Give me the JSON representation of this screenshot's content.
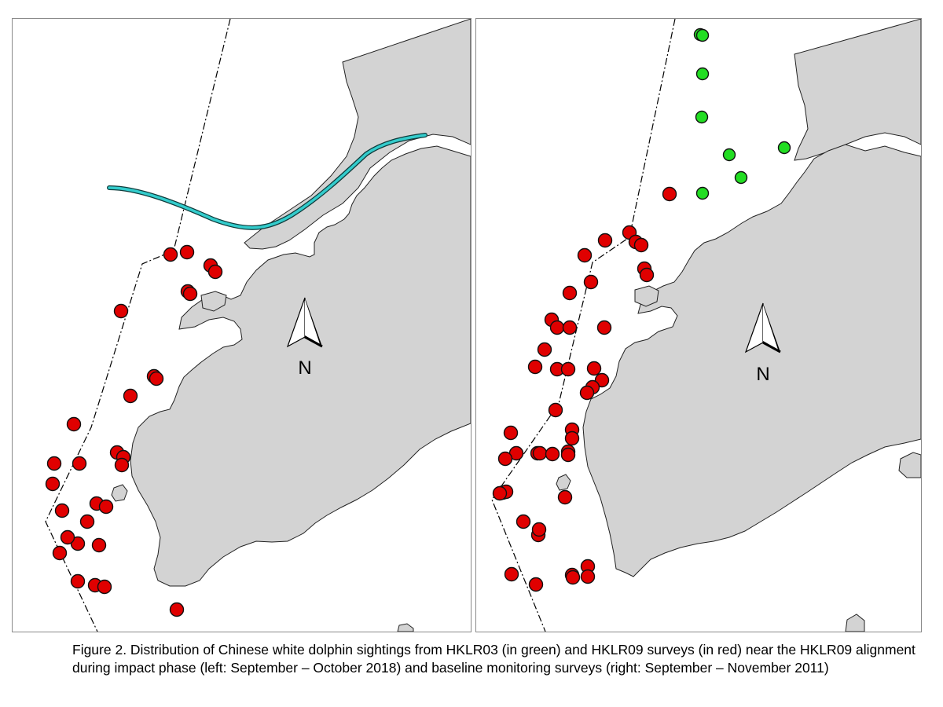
{
  "figure": {
    "caption": "Figure 2.  Distribution of Chinese white dolphin sightings from HKLR03 (in green) and HKLR09 surveys (in red) near the HKLR09 alignment during impact phase (left: September – October 2018) and baseline monitoring surveys (right: September – November 2011)"
  },
  "colors": {
    "land": "#d3d3d3",
    "coastline": "#222222",
    "water": "#ffffff",
    "hklr09_sighting": "#e00000",
    "hklr03_sighting": "#22dd22",
    "alignment": "#33cccc"
  },
  "legend": {
    "HKLR03": "green sightings",
    "HKLR09": "red sightings"
  },
  "maps": [
    {
      "id": "left",
      "period": "impact phase: September – October 2018",
      "north_arrow_label": "N",
      "shows_alignment": true,
      "hklr09_sightings_count": 29,
      "hklr03_sightings_count": 0
    },
    {
      "id": "right",
      "period": "baseline monitoring: September – November 2011",
      "north_arrow_label": "N",
      "shows_alignment": false,
      "hklr09_sightings_count": 46,
      "hklr03_sightings_count": 8
    }
  ]
}
